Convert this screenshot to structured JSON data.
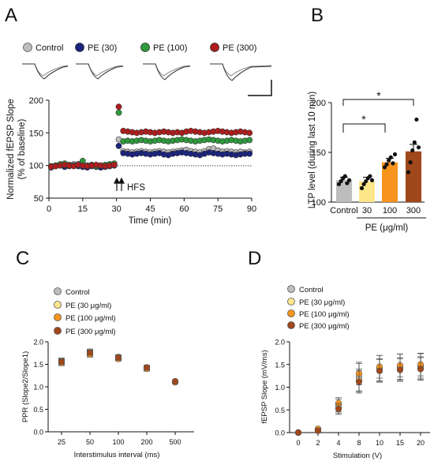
{
  "chart_data": [
    {
      "panel": "A",
      "type": "scatter",
      "ylabel": "Normalized fEPSP Slope\n(% of baseline)",
      "xlabel": "Time (min)",
      "xticks": [
        0,
        15,
        30,
        45,
        60,
        75,
        90
      ],
      "yticks": [
        50,
        100,
        150,
        200
      ],
      "xlim": [
        0,
        90
      ],
      "ylim": [
        50,
        200
      ],
      "baseline": 100,
      "annotation": "HFS",
      "annotation_x": 31,
      "legend": [
        "Control",
        "PE (30)",
        "PE (100)",
        "PE (300)"
      ],
      "legend_position": "top",
      "series": [
        {
          "name": "Control",
          "color": "#bdbdbd",
          "x": [
            1,
            3,
            5,
            7,
            9,
            11,
            13,
            15,
            17,
            19,
            21,
            23,
            25,
            27,
            29,
            31,
            33,
            35,
            37,
            39,
            41,
            43,
            45,
            47,
            49,
            51,
            53,
            55,
            57,
            59,
            61,
            63,
            65,
            67,
            69,
            71,
            73,
            75,
            77,
            79,
            81,
            83,
            85,
            87,
            89
          ],
          "y": [
            98,
            100,
            101,
            99,
            100,
            102,
            101,
            100,
            99,
            101,
            100,
            99,
            100,
            101,
            102,
            140,
            122,
            121,
            120,
            121,
            122,
            121,
            120,
            121,
            122,
            121,
            120,
            121,
            122,
            123,
            124,
            122,
            121,
            120,
            122,
            125,
            126,
            123,
            121,
            122,
            121,
            120,
            121,
            120,
            121
          ],
          "err": [
            3,
            3,
            3,
            3,
            3,
            3,
            3,
            3,
            3,
            3,
            3,
            3,
            3,
            3,
            3,
            3,
            3,
            3,
            3,
            3,
            3,
            3,
            3,
            3,
            3,
            3,
            3,
            3,
            3,
            3,
            3,
            3,
            3,
            3,
            3,
            3,
            3,
            3,
            3,
            3,
            3,
            3,
            3,
            3,
            3
          ]
        },
        {
          "name": "PE (30)",
          "color": "#1a237e",
          "x": [
            1,
            3,
            5,
            7,
            9,
            11,
            13,
            15,
            17,
            19,
            21,
            23,
            25,
            27,
            29,
            31,
            33,
            35,
            37,
            39,
            41,
            43,
            45,
            47,
            49,
            51,
            53,
            55,
            57,
            59,
            61,
            63,
            65,
            67,
            69,
            71,
            73,
            75,
            77,
            79,
            81,
            83,
            85,
            87,
            89
          ],
          "y": [
            97,
            99,
            100,
            98,
            99,
            100,
            99,
            98,
            97,
            99,
            98,
            97,
            98,
            99,
            100,
            130,
            119,
            118,
            117,
            118,
            119,
            118,
            117,
            118,
            119,
            117,
            116,
            118,
            119,
            120,
            119,
            118,
            117,
            116,
            118,
            120,
            119,
            118,
            117,
            118,
            117,
            116,
            117,
            118,
            118
          ],
          "err": [
            2,
            2,
            2,
            2,
            2,
            2,
            2,
            2,
            2,
            2,
            2,
            2,
            2,
            2,
            2,
            2,
            2,
            2,
            2,
            2,
            2,
            2,
            2,
            2,
            2,
            2,
            2,
            2,
            2,
            2,
            2,
            2,
            2,
            2,
            2,
            2,
            2,
            2,
            2,
            2,
            2,
            2,
            2,
            2,
            2
          ]
        },
        {
          "name": "PE (100)",
          "color": "#2e9a3c",
          "x": [
            1,
            3,
            5,
            7,
            9,
            11,
            13,
            15,
            17,
            19,
            21,
            23,
            25,
            27,
            29,
            31,
            33,
            35,
            37,
            39,
            41,
            43,
            45,
            47,
            49,
            51,
            53,
            55,
            57,
            59,
            61,
            63,
            65,
            67,
            69,
            71,
            73,
            75,
            77,
            79,
            81,
            83,
            85,
            87,
            89
          ],
          "y": [
            99,
            100,
            102,
            103,
            101,
            100,
            102,
            107,
            100,
            101,
            99,
            100,
            101,
            102,
            103,
            181,
            137,
            138,
            137,
            138,
            139,
            138,
            137,
            138,
            139,
            138,
            137,
            138,
            139,
            140,
            139,
            138,
            137,
            138,
            139,
            140,
            139,
            138,
            137,
            138,
            139,
            138,
            137,
            138,
            139
          ],
          "err": [
            3,
            3,
            3,
            3,
            3,
            3,
            3,
            5,
            3,
            3,
            3,
            3,
            3,
            3,
            3,
            4,
            4,
            4,
            4,
            4,
            4,
            4,
            4,
            4,
            4,
            4,
            4,
            4,
            4,
            4,
            4,
            4,
            4,
            4,
            4,
            4,
            4,
            4,
            4,
            4,
            4,
            4,
            4,
            4,
            4
          ]
        },
        {
          "name": "PE (300)",
          "color": "#b01c1c",
          "x": [
            1,
            3,
            5,
            7,
            9,
            11,
            13,
            15,
            17,
            19,
            21,
            23,
            25,
            27,
            29,
            31,
            33,
            35,
            37,
            39,
            41,
            43,
            45,
            47,
            49,
            51,
            53,
            55,
            57,
            59,
            61,
            63,
            65,
            67,
            69,
            71,
            73,
            75,
            77,
            79,
            81,
            83,
            85,
            87,
            89
          ],
          "y": [
            98,
            99,
            100,
            101,
            100,
            99,
            101,
            100,
            99,
            100,
            101,
            100,
            99,
            100,
            101,
            190,
            153,
            152,
            151,
            150,
            151,
            152,
            151,
            150,
            151,
            152,
            151,
            150,
            151,
            150,
            152,
            153,
            152,
            151,
            150,
            151,
            152,
            153,
            152,
            151,
            150,
            151,
            152,
            151,
            150
          ],
          "err": [
            3,
            3,
            3,
            3,
            3,
            3,
            3,
            3,
            3,
            3,
            3,
            3,
            3,
            3,
            3,
            5,
            5,
            5,
            5,
            5,
            5,
            5,
            5,
            5,
            5,
            5,
            5,
            5,
            5,
            5,
            5,
            5,
            5,
            5,
            5,
            5,
            5,
            5,
            5,
            5,
            5,
            5,
            5,
            5,
            5
          ]
        }
      ]
    },
    {
      "panel": "B",
      "type": "bar",
      "ylabel": "LTP level (during last 10 min)",
      "categories": [
        "Control",
        "30",
        "100",
        "300"
      ],
      "group_label": "PE (μg/ml)",
      "values": [
        122,
        121,
        140,
        151
      ],
      "errors": [
        3,
        4,
        4,
        7
      ],
      "colors": [
        "#bdbdbd",
        "#fde68a",
        "#f7941d",
        "#a0471b"
      ],
      "points": [
        [
          118,
          121,
          124,
          126,
          119,
          122
        ],
        [
          114,
          118,
          121,
          124,
          126,
          122
        ],
        [
          135,
          138,
          142,
          145,
          139,
          148
        ],
        [
          130,
          140,
          152,
          160,
          183,
          155
        ]
      ],
      "ylim": [
        100,
        200
      ],
      "yticks": [
        100,
        150,
        200
      ],
      "significance": [
        {
          "from": "Control",
          "to": "100",
          "label": "*"
        },
        {
          "from": "Control",
          "to": "300",
          "label": "*"
        }
      ]
    },
    {
      "panel": "C",
      "type": "scatter",
      "ylabel": "PPR (Slope2/Slope1)",
      "xlabel": "Interstimulus interval (ms)",
      "categories": [
        "25",
        "50",
        "100",
        "200",
        "500"
      ],
      "ylim": [
        0,
        2.0
      ],
      "yticks": [
        0.0,
        0.5,
        1.0,
        1.5,
        2.0
      ],
      "legend": [
        "Control",
        "PE (30 μg/ml)",
        "PE (100 μg/ml)",
        "PE (300 μg/ml)"
      ],
      "legend_position": "top-left",
      "series": [
        {
          "name": "Control",
          "color": "#bdbdbd",
          "values": [
            1.58,
            1.78,
            1.66,
            1.42,
            1.12
          ],
          "err": [
            0.06,
            0.06,
            0.05,
            0.05,
            0.03
          ]
        },
        {
          "name": "PE (30 μg/ml)",
          "color": "#fde68a",
          "values": [
            1.55,
            1.74,
            1.64,
            1.41,
            1.11
          ],
          "err": [
            0.06,
            0.06,
            0.05,
            0.05,
            0.03
          ]
        },
        {
          "name": "PE (100 μg/ml)",
          "color": "#f7941d",
          "values": [
            1.53,
            1.72,
            1.62,
            1.4,
            1.1
          ],
          "err": [
            0.06,
            0.06,
            0.05,
            0.05,
            0.03
          ]
        },
        {
          "name": "PE (300 μg/ml)",
          "color": "#a0471b",
          "values": [
            1.56,
            1.76,
            1.65,
            1.43,
            1.12
          ],
          "err": [
            0.06,
            0.06,
            0.05,
            0.05,
            0.03
          ]
        }
      ]
    },
    {
      "panel": "D",
      "type": "scatter",
      "ylabel": "fEPSP Slope (mV/ms)",
      "xlabel": "Stimulation (V)",
      "categories": [
        "0",
        "2",
        "4",
        "8",
        "10",
        "15",
        "20"
      ],
      "ylim": [
        0.0,
        2.0
      ],
      "yticks": [
        0.0,
        0.5,
        1.0,
        1.5,
        2.0
      ],
      "legend": [
        "Control",
        "PE (30 μg/ml)",
        "PE (100 μg/ml)",
        "PE (300 μg/ml)"
      ],
      "legend_position": "top-left",
      "series": [
        {
          "name": "Control",
          "color": "#bdbdbd",
          "values": [
            0.0,
            0.07,
            0.6,
            1.22,
            1.42,
            1.45,
            1.47
          ],
          "err": [
            0.01,
            0.03,
            0.14,
            0.3,
            0.28,
            0.28,
            0.27
          ]
        },
        {
          "name": "PE (30 μg/ml)",
          "color": "#fde68a",
          "values": [
            0.0,
            0.05,
            0.55,
            1.15,
            1.38,
            1.4,
            1.42
          ],
          "err": [
            0.01,
            0.03,
            0.12,
            0.25,
            0.25,
            0.25,
            0.25
          ]
        },
        {
          "name": "PE (100 μg/ml)",
          "color": "#f7941d",
          "values": [
            0.0,
            0.08,
            0.65,
            1.3,
            1.45,
            1.48,
            1.5
          ],
          "err": [
            0.01,
            0.03,
            0.12,
            0.25,
            0.25,
            0.25,
            0.25
          ]
        },
        {
          "name": "PE (300 μg/ml)",
          "color": "#a0471b",
          "values": [
            0.0,
            0.04,
            0.52,
            1.12,
            1.36,
            1.38,
            1.4
          ],
          "err": [
            0.01,
            0.03,
            0.12,
            0.25,
            0.25,
            0.25,
            0.25
          ]
        }
      ]
    }
  ],
  "labels": {
    "panelA": "A",
    "panelB": "B",
    "panelC": "C",
    "panelD": "D",
    "legA0": "Control",
    "legA1": "PE (30)",
    "legA2": "PE (100)",
    "legA3": "PE (300)",
    "xA": "Time (min)",
    "yA1": "Normalized fEPSP Slope",
    "yA2": "(% of baseline)",
    "hfs": "HFS",
    "yB": "LTP level (during last 10 min)",
    "groupB": "PE (μg/ml)",
    "star": "*",
    "yC": "PPR (Slope2/Slope1)",
    "xC": "Interstimulus interval (ms)",
    "yD": "fEPSP Slope (mV/ms)",
    "xD": "Stimulation (V)",
    "legCD0": "Control",
    "legCD1": "PE (30 μg/ml)",
    "legCD2": "PE (100 μg/ml)",
    "legCD3": "PE (300 μg/ml)"
  }
}
